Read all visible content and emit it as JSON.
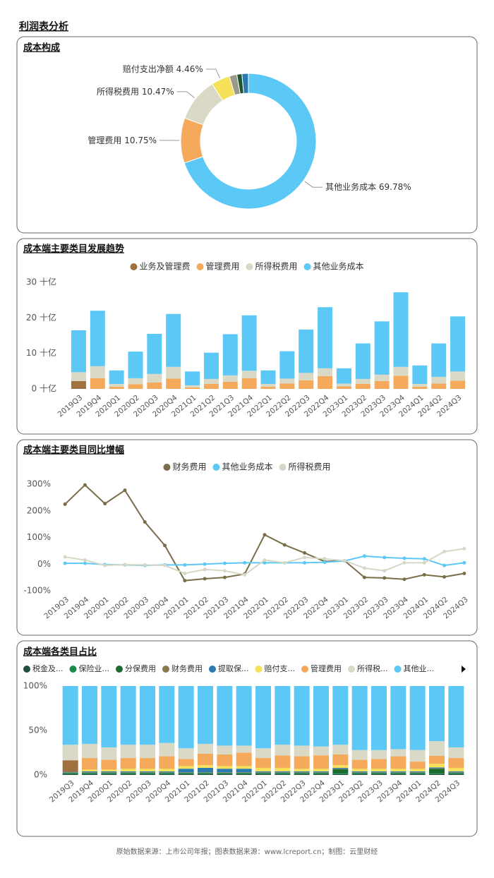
{
  "title": "利润表分析",
  "footer": "原始数据来源：上市公司年报；图表数据来源：www.lcreport.cn；制图：云里财经",
  "chart_data": [
    {
      "type": "donut",
      "title": "成本构成",
      "categories": [
        "其他业务成本",
        "管理费用",
        "所得税费用",
        "赔付支出净额",
        null,
        null,
        null
      ],
      "values": [
        69.78,
        10.75,
        10.47,
        4.46,
        1.8,
        1.2,
        1.54
      ],
      "value_labels": [
        "69.78%",
        "10.75%",
        "10.47%",
        "4.46%",
        null,
        null,
        null
      ],
      "colors": [
        "#5bc8f5",
        "#f5a95a",
        "#d9d9c6",
        "#f7e15a",
        "#9a9a8a",
        "#1e5631",
        "#2a7ab0"
      ]
    },
    {
      "type": "bar",
      "stacked": true,
      "title": "成本端主要类目发展趋势",
      "legend": "top",
      "categories": [
        "2019Q3",
        "2019Q4",
        "2020Q1",
        "2020Q2",
        "2020Q3",
        "2020Q4",
        "2021Q1",
        "2021Q2",
        "2021Q3",
        "2021Q4",
        "2022Q1",
        "2022Q2",
        "2022Q3",
        "2022Q4",
        "2023Q1",
        "2023Q2",
        "2023Q3",
        "2023Q4",
        "2024Q1",
        "2024Q2",
        "2024Q3"
      ],
      "series": [
        {
          "name": "业务及管理费",
          "color": "#a0703f",
          "values": [
            2.2,
            null,
            null,
            null,
            null,
            null,
            null,
            null,
            null,
            null,
            null,
            null,
            null,
            null,
            null,
            null,
            null,
            null,
            null,
            null,
            null
          ]
        },
        {
          "name": "管理费用",
          "color": "#f5a95a",
          "values": [
            null,
            3.0,
            0.6,
            1.3,
            1.8,
            2.9,
            0.4,
            1.4,
            2.0,
            3.0,
            0.6,
            1.5,
            2.4,
            3.6,
            0.7,
            1.4,
            2.2,
            3.7,
            0.6,
            1.5,
            2.3
          ]
        },
        {
          "name": "所得税费用",
          "color": "#d9d9c6",
          "values": [
            2.5,
            3.4,
            0.8,
            1.7,
            2.4,
            3.3,
            0.6,
            1.4,
            1.8,
            2.1,
            0.8,
            1.4,
            2.1,
            2.2,
            0.8,
            1.4,
            1.8,
            2.5,
            0.8,
            1.9,
            2.6
          ]
        },
        {
          "name": "其他业务成本",
          "color": "#5bc8f5",
          "values": [
            11.8,
            15.6,
            3.8,
            7.5,
            11.3,
            14.9,
            3.9,
            7.4,
            11.6,
            15.6,
            3.8,
            7.7,
            12.2,
            17.2,
            4.3,
            10.0,
            15.0,
            21.0,
            5.2,
            9.4,
            15.5
          ]
        }
      ],
      "ylim": [
        0,
        30
      ],
      "yticks": [
        {
          "value": 0,
          "label": "0 十亿"
        },
        {
          "value": 10,
          "label": "10 十亿"
        },
        {
          "value": 20,
          "label": "20 十亿"
        },
        {
          "value": 30,
          "label": "30 十亿"
        }
      ]
    },
    {
      "type": "line",
      "title": "成本端主要类目同比增幅",
      "legend": "top",
      "categories": [
        "2019Q3",
        "2019Q4",
        "2020Q1",
        "2020Q2",
        "2020Q3",
        "2020Q4",
        "2021Q1",
        "2021Q2",
        "2021Q3",
        "2021Q4",
        "2022Q1",
        "2022Q2",
        "2022Q3",
        "2022Q4",
        "2023Q1",
        "2023Q2",
        "2023Q3",
        "2023Q4",
        "2024Q1",
        "2024Q2",
        "2024Q3"
      ],
      "series": [
        {
          "name": "财务费用",
          "color": "#7a6e4a",
          "values": [
            225,
            297,
            227,
            277,
            158,
            70,
            -62,
            -55,
            -50,
            -37,
            110,
            72,
            42,
            10,
            13,
            -50,
            -52,
            -57,
            -40,
            -48,
            -35
          ]
        },
        {
          "name": "其他业务成本",
          "color": "#5bc8f5",
          "values": [
            3,
            3,
            -2,
            -3,
            -5,
            -3,
            -3,
            0,
            3,
            5,
            5,
            5,
            5,
            7,
            12,
            30,
            25,
            22,
            20,
            -5,
            5
          ]
        },
        {
          "name": "所得税费用",
          "color": "#d6d8c6",
          "values": [
            27,
            15,
            -5,
            -2,
            -3,
            -5,
            -35,
            -20,
            -25,
            -40,
            15,
            5,
            25,
            20,
            13,
            -15,
            -25,
            5,
            5,
            47,
            58
          ]
        }
      ],
      "ylim": [
        -100,
        300
      ],
      "yticks": [
        {
          "value": -100,
          "label": "-100%"
        },
        {
          "value": 0,
          "label": "0%"
        },
        {
          "value": 100,
          "label": "100%"
        },
        {
          "value": 200,
          "label": "200%"
        },
        {
          "value": 300,
          "label": "300%"
        }
      ]
    },
    {
      "type": "bar",
      "stacked": true,
      "title": "成本端各类目占比",
      "legend": "top-left",
      "categories": [
        "2019Q3",
        "2019Q4",
        "2020Q1",
        "2020Q2",
        "2020Q3",
        "2020Q4",
        "2021Q1",
        "2021Q2",
        "2021Q3",
        "2021Q4",
        "2022Q1",
        "2022Q2",
        "2022Q3",
        "2022Q4",
        "2023Q1",
        "2023Q2",
        "2023Q3",
        "2023Q4",
        "2024Q1",
        "2024Q2",
        "2024Q3"
      ],
      "series": [
        {
          "name": "税金及...",
          "color": "#1f4e3d",
          "values": [
            1,
            1,
            1,
            1,
            1,
            1,
            1,
            1,
            1,
            1,
            1,
            1,
            1,
            1,
            1,
            1,
            1,
            1,
            1,
            1,
            1
          ]
        },
        {
          "name": "保险业...",
          "color": "#1b8a4c",
          "values": [
            1,
            1,
            1,
            1,
            1,
            1,
            1,
            1,
            1,
            1,
            1,
            1,
            1,
            1,
            1,
            1,
            1,
            1,
            1,
            1,
            1
          ]
        },
        {
          "name": "分保费用",
          "color": "#1e6b2e",
          "values": [
            0.5,
            0.5,
            0.5,
            0.5,
            0.5,
            0.5,
            0.5,
            0.5,
            0.5,
            0.5,
            0.5,
            0.5,
            0.5,
            0.5,
            4.5,
            0.5,
            0.5,
            0.5,
            0.5,
            5,
            0.5
          ]
        },
        {
          "name": "财务费用",
          "color": "#8c7650",
          "values": [
            0.5,
            0.5,
            0.5,
            0.5,
            0.5,
            0.5,
            0.5,
            0.5,
            0.5,
            0.5,
            0.5,
            0.5,
            0.5,
            0.5,
            0.5,
            0.5,
            0.5,
            0.5,
            0.5,
            0.5,
            0.5
          ]
        },
        {
          "name": "提取保...",
          "color": "#2a7ab0",
          "values": [
            0.5,
            1,
            1,
            1,
            1,
            1,
            4,
            5,
            4,
            4,
            1,
            1,
            1,
            1,
            1,
            1,
            1,
            1,
            1,
            1,
            1
          ]
        },
        {
          "name": null,
          "color": "#a0703f",
          "values": [
            13,
            0,
            0,
            0,
            0,
            0,
            0,
            0,
            0,
            0,
            0,
            0,
            0,
            0,
            0,
            0,
            0,
            0,
            0,
            0,
            0
          ]
        },
        {
          "name": "赔付支...",
          "color": "#f7e15a",
          "values": [
            0,
            2,
            2,
            3,
            3,
            3,
            3,
            3,
            3,
            3,
            4,
            4,
            3,
            3,
            3,
            3,
            3,
            3,
            3,
            4,
            4
          ]
        },
        {
          "name": "管理费用",
          "color": "#f5a95a",
          "values": [
            0,
            13,
            11,
            12,
            12,
            14,
            8,
            13,
            13,
            15,
            11,
            14,
            14,
            15,
            12,
            10,
            11,
            14,
            8,
            9,
            11
          ]
        },
        {
          "name": "所得税...",
          "color": "#d9d9c6",
          "values": [
            17.5,
            16,
            14,
            15,
            15,
            15,
            12,
            11,
            10,
            8,
            11,
            12,
            12,
            10,
            11,
            11,
            10,
            8,
            13,
            16.5,
            12
          ]
        },
        {
          "name": "其他业...",
          "color": "#5bc8f5",
          "values": [
            66,
            65,
            69,
            66,
            66,
            64,
            70,
            65,
            67,
            67,
            70,
            66,
            67,
            68,
            66,
            72,
            72,
            71,
            72,
            62,
            69
          ]
        }
      ],
      "ylim": [
        0,
        100
      ],
      "yticks": [
        {
          "value": 0,
          "label": "0%"
        },
        {
          "value": 50,
          "label": "50%"
        },
        {
          "value": 100,
          "label": "100%"
        }
      ]
    }
  ]
}
